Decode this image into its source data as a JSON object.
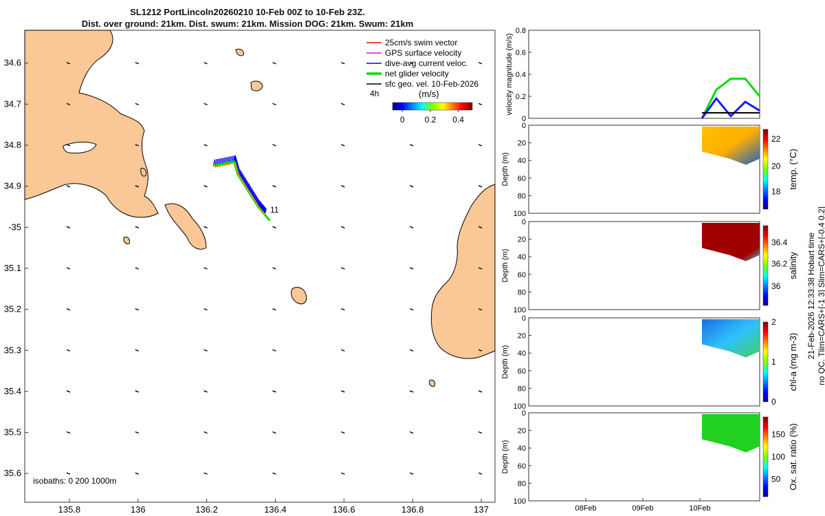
{
  "title": {
    "line1": "SL1212 PortLincoln20260210 10-Feb 00Z to 10-Feb 23Z.",
    "line2": "Dist. over ground: 21km. Dist. swum: 21km. Mission DOG: 21km. Swum: 21km"
  },
  "map": {
    "xticks": [
      135.8,
      136,
      136.2,
      136.4,
      136.6,
      136.8,
      137
    ],
    "xtick_labels": [
      "135.8",
      "136",
      "136.2",
      "136.4",
      "136.6",
      "136.8",
      "137"
    ],
    "xlim": [
      135.67,
      137.04
    ],
    "ylim": [
      -35.67,
      -34.52
    ],
    "yticks": [
      -34.6,
      -34.7,
      -34.8,
      -34.9,
      -35.0,
      -35.1,
      -35.2,
      -35.3,
      -35.4,
      -35.5,
      -35.6
    ],
    "ytick_labels": [
      "34.6",
      "34.7",
      "34.8",
      "34.9",
      "-35",
      "35.1",
      "35.2",
      "35.3",
      "35.4",
      "35.5",
      "35.6"
    ],
    "isobaths_label": "isobaths: 0   200  1000m",
    "point_label": "11",
    "land_color": "#f9c896",
    "legend": [
      {
        "label": "25cm/s swim vector",
        "color": "#ff0000"
      },
      {
        "label": "GPS surface velocity",
        "color": "#ff00ff"
      },
      {
        "label": "dive-avg current veloc.",
        "color": "#0000ff"
      },
      {
        "label": "net glider velocity",
        "color": "#00dd00"
      },
      {
        "label": "sfc geo. vel. 10-Feb-2026",
        "color": "#000000"
      }
    ],
    "legend_extra": "4h",
    "colorbar": {
      "label": "(m/s)",
      "ticks": [
        "0",
        "0.2",
        "0.4"
      ],
      "range": [
        -0.07,
        0.5
      ]
    },
    "track": [
      {
        "lon": 136.22,
        "lat": -34.85
      },
      {
        "lon": 136.28,
        "lat": -34.84
      },
      {
        "lon": 136.29,
        "lat": -34.87
      },
      {
        "lon": 136.32,
        "lat": -34.91
      },
      {
        "lon": 136.35,
        "lat": -34.95
      },
      {
        "lon": 136.37,
        "lat": -34.97
      }
    ]
  },
  "right_panels": {
    "velocity": {
      "ylabel": "velocity magnitude (m/s)",
      "yticks": [
        "0",
        "0.2",
        "0.4",
        "0.6",
        "0.8"
      ],
      "ylim": [
        0,
        0.8
      ]
    },
    "temperature": {
      "ylabel": "Depth (m)",
      "cbar_label": "temp. (°C)",
      "cbar_ticks": [
        "22",
        "20",
        "18"
      ]
    },
    "salinity": {
      "ylabel": "Depth (m)",
      "cbar_label": "salinity",
      "cbar_ticks": [
        "36.4",
        "36.2",
        "36"
      ]
    },
    "chla": {
      "ylabel": "Depth (m)",
      "cbar_label": "chl-a (mg m-3)",
      "cbar_ticks": [
        "2",
        "1",
        "0"
      ]
    },
    "oxygen": {
      "ylabel": "Depth (m)",
      "cbar_label": "Ox. sat. ratio (%)",
      "cbar_ticks": [
        "150",
        "100",
        "50"
      ]
    },
    "depth_ticks": [
      "0",
      "20",
      "40",
      "60",
      "80",
      "100"
    ],
    "xtick_labels": [
      "08Feb",
      "09Feb",
      "10Feb"
    ]
  },
  "side_note_1": "21-Feb-2026 12:33:38 Hobart time",
  "side_note_2": "no QC. Tlim=CARS+[-1 3] Slim=CARS+[-0.4 0.2]",
  "chart_data": {
    "type": "line",
    "title": "velocity magnitude",
    "x": [
      "10Feb 00Z",
      "10Feb 06Z",
      "10Feb 12Z",
      "10Feb 18Z",
      "10Feb 23Z"
    ],
    "series": [
      {
        "name": "net glider velocity",
        "values": [
          0.0,
          0.26,
          0.36,
          0.36,
          0.2
        ]
      },
      {
        "name": "dive-avg current veloc.",
        "values": [
          0.0,
          0.18,
          0.02,
          0.15,
          0.07
        ]
      },
      {
        "name": "sfc geo. vel.",
        "values": [
          0.05,
          0.05,
          0.05,
          0.05,
          0.05
        ]
      }
    ],
    "ylabel": "velocity magnitude (m/s)",
    "ylim": [
      0,
      0.8
    ]
  }
}
